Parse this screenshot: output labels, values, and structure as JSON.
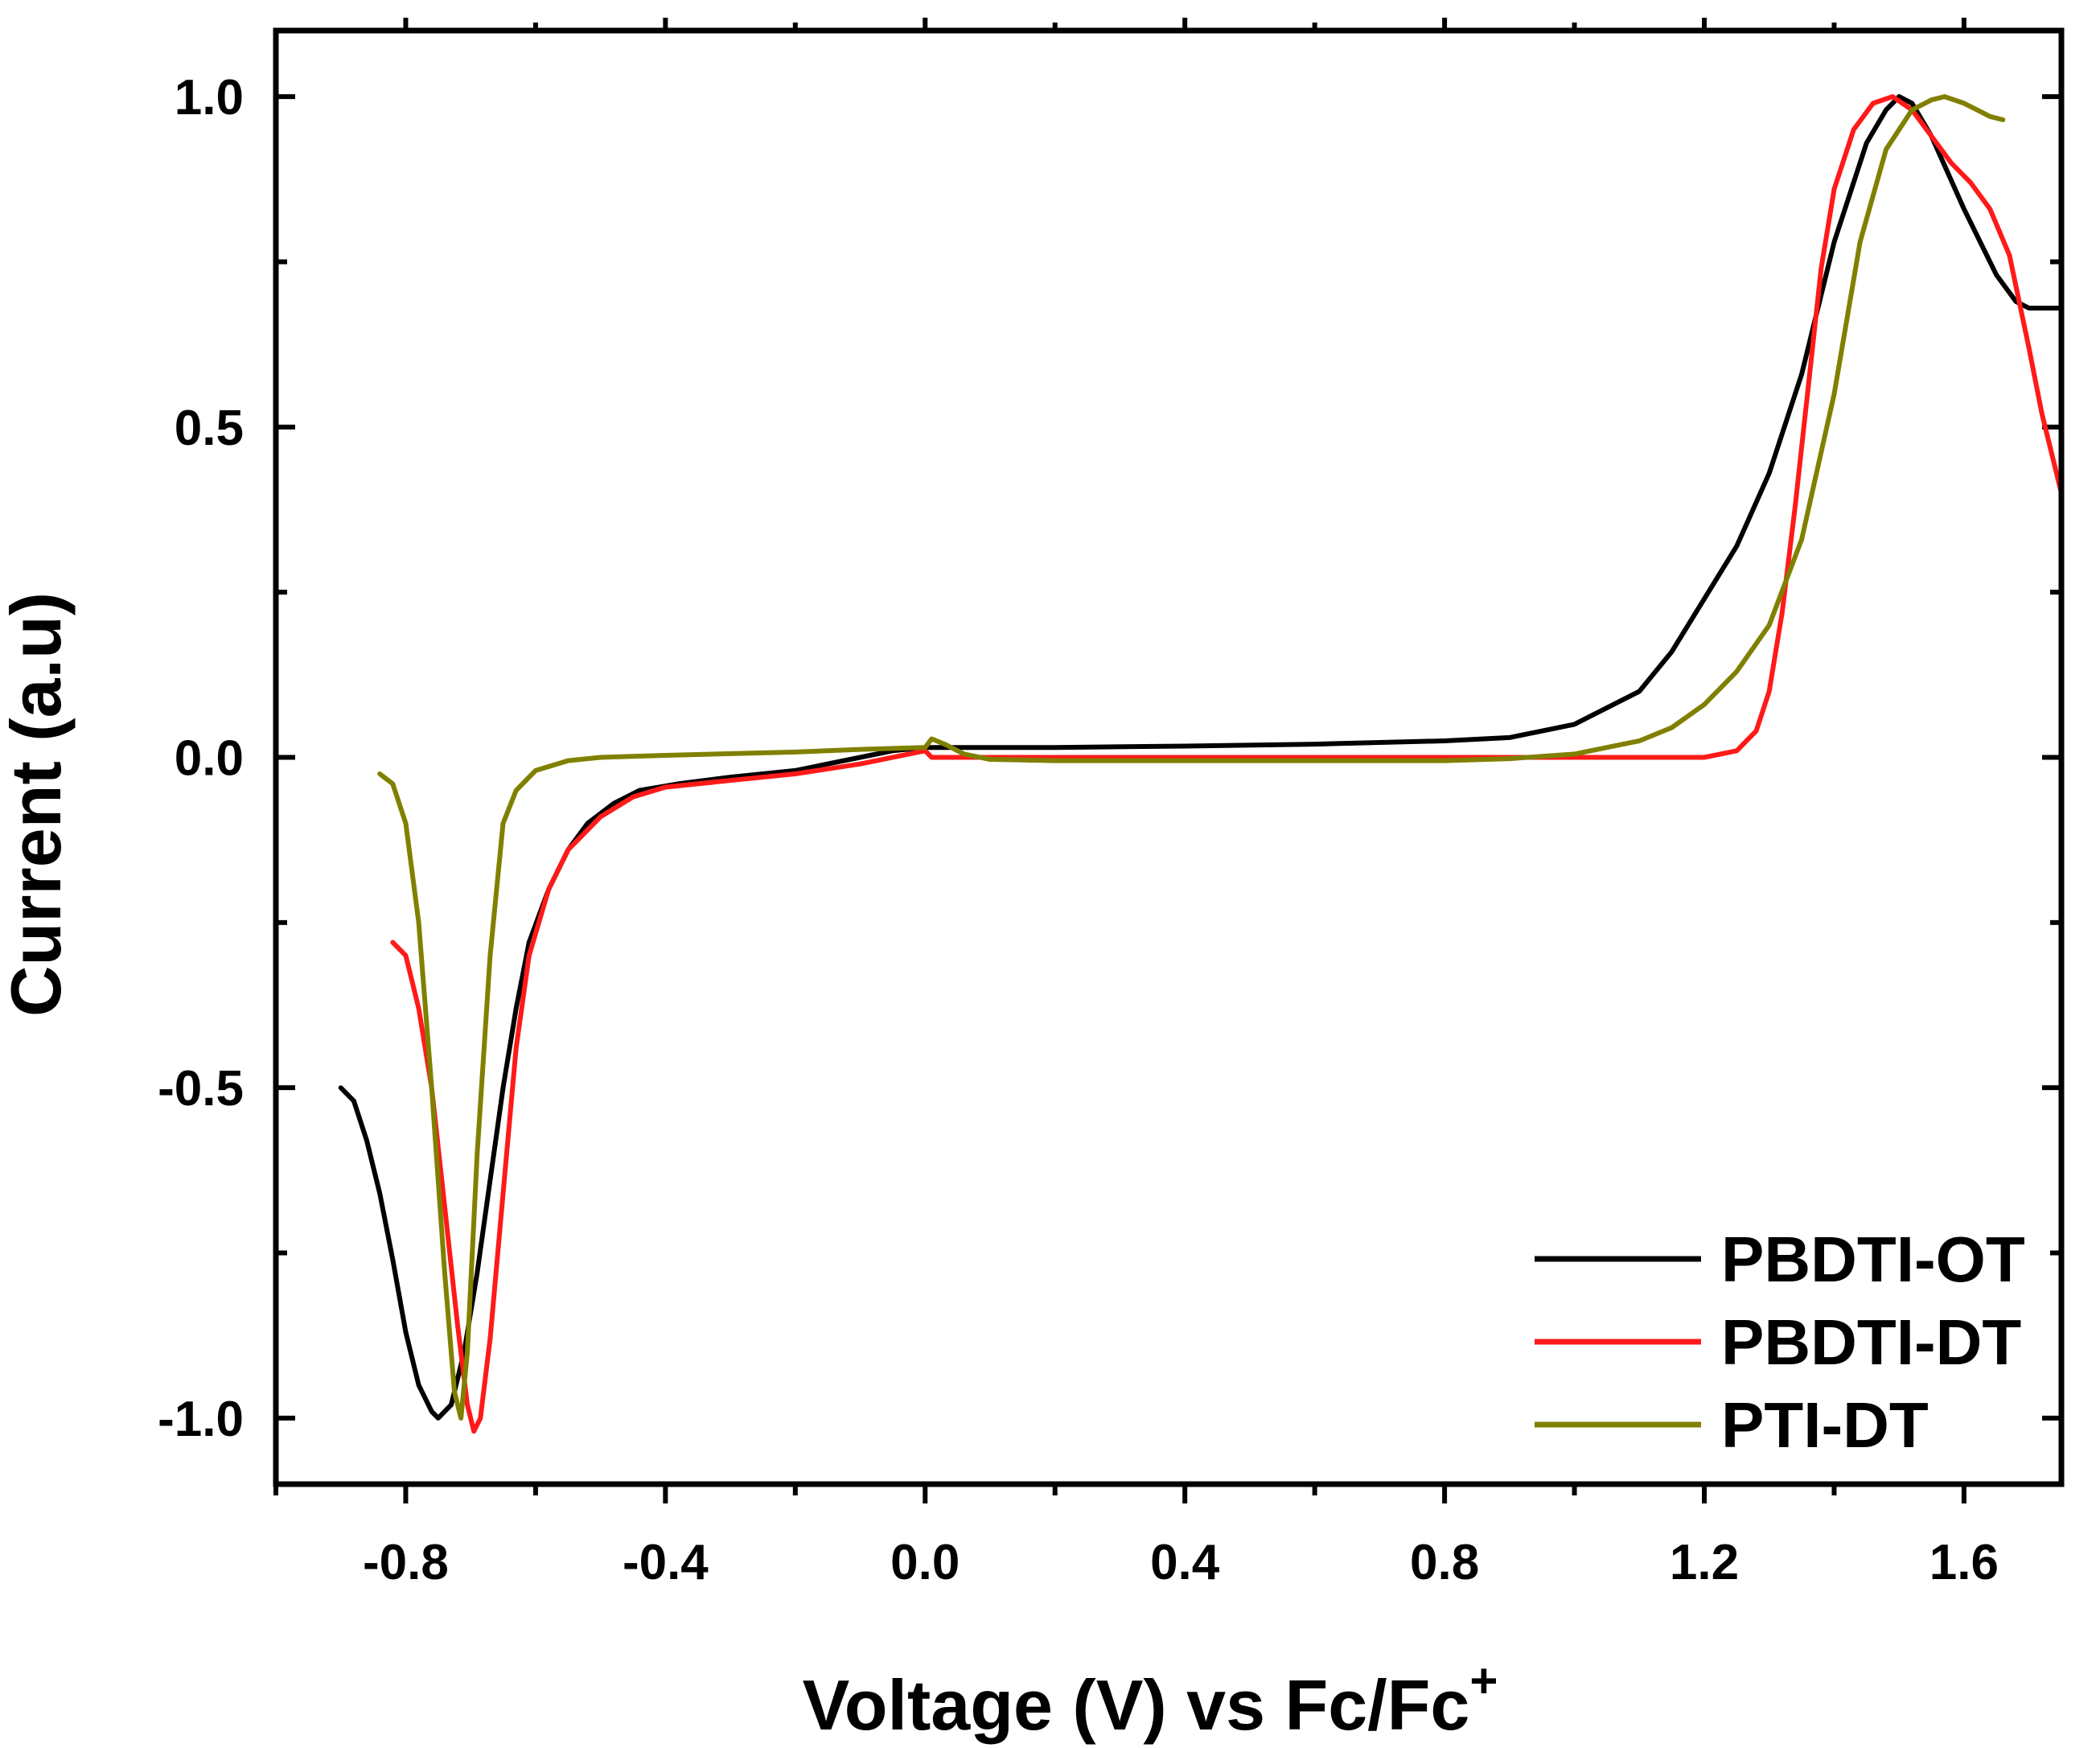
{
  "chart_data": {
    "type": "line",
    "title": "",
    "xlabel": "Voltage (V) vs Fc/Fc",
    "xlabel_superscript": "+",
    "ylabel": "Current (a.u)",
    "xlim": [
      -1.0,
      1.75
    ],
    "ylim": [
      -1.1,
      1.1
    ],
    "x_ticks": [
      -0.8,
      -0.4,
      0.0,
      0.4,
      0.8,
      1.2,
      1.6
    ],
    "x_tick_labels": [
      "-0.8",
      "-0.4",
      "0.0",
      "0.4",
      "0.8",
      "1.2",
      "1.6"
    ],
    "y_ticks": [
      -1.0,
      -0.5,
      0.0,
      0.5,
      1.0
    ],
    "y_tick_labels": [
      "-1.0",
      "-0.5",
      "0.0",
      "0.5",
      "1.0"
    ],
    "grid": false,
    "legend_position": "bottom-right",
    "series": [
      {
        "name": "PBDTI-OT",
        "color": "#000000",
        "points": [
          [
            -0.9,
            -0.5
          ],
          [
            -0.88,
            -0.52
          ],
          [
            -0.86,
            -0.58
          ],
          [
            -0.84,
            -0.66
          ],
          [
            -0.82,
            -0.76
          ],
          [
            -0.8,
            -0.87
          ],
          [
            -0.78,
            -0.95
          ],
          [
            -0.76,
            -0.99
          ],
          [
            -0.75,
            -1.0
          ],
          [
            -0.73,
            -0.98
          ],
          [
            -0.71,
            -0.9
          ],
          [
            -0.69,
            -0.78
          ],
          [
            -0.67,
            -0.64
          ],
          [
            -0.65,
            -0.5
          ],
          [
            -0.63,
            -0.38
          ],
          [
            -0.61,
            -0.28
          ],
          [
            -0.58,
            -0.2
          ],
          [
            -0.55,
            -0.14
          ],
          [
            -0.52,
            -0.1
          ],
          [
            -0.48,
            -0.07
          ],
          [
            -0.44,
            -0.05
          ],
          [
            -0.38,
            -0.04
          ],
          [
            -0.3,
            -0.03
          ],
          [
            -0.2,
            -0.02
          ],
          [
            -0.1,
            0.0
          ],
          [
            -0.05,
            0.01
          ],
          [
            0.0,
            0.015
          ],
          [
            0.2,
            0.015
          ],
          [
            0.4,
            0.017
          ],
          [
            0.6,
            0.02
          ],
          [
            0.8,
            0.025
          ],
          [
            0.9,
            0.03
          ],
          [
            1.0,
            0.05
          ],
          [
            1.1,
            0.1
          ],
          [
            1.15,
            0.16
          ],
          [
            1.2,
            0.24
          ],
          [
            1.25,
            0.32
          ],
          [
            1.3,
            0.43
          ],
          [
            1.35,
            0.58
          ],
          [
            1.4,
            0.78
          ],
          [
            1.45,
            0.93
          ],
          [
            1.48,
            0.98
          ],
          [
            1.5,
            1.0
          ],
          [
            1.52,
            0.99
          ],
          [
            1.55,
            0.94
          ],
          [
            1.6,
            0.83
          ],
          [
            1.65,
            0.73
          ],
          [
            1.68,
            0.69
          ],
          [
            1.7,
            0.68
          ],
          [
            1.75,
            0.68
          ]
        ]
      },
      {
        "name": "PBDTI-DT",
        "color": "#ff1a1a",
        "points": [
          [
            -0.82,
            -0.28
          ],
          [
            -0.8,
            -0.3
          ],
          [
            -0.78,
            -0.38
          ],
          [
            -0.76,
            -0.5
          ],
          [
            -0.74,
            -0.68
          ],
          [
            -0.72,
            -0.86
          ],
          [
            -0.705,
            -0.98
          ],
          [
            -0.695,
            -1.02
          ],
          [
            -0.685,
            -1.0
          ],
          [
            -0.67,
            -0.88
          ],
          [
            -0.65,
            -0.66
          ],
          [
            -0.63,
            -0.44
          ],
          [
            -0.61,
            -0.3
          ],
          [
            -0.58,
            -0.2
          ],
          [
            -0.55,
            -0.14
          ],
          [
            -0.5,
            -0.09
          ],
          [
            -0.45,
            -0.06
          ],
          [
            -0.4,
            -0.045
          ],
          [
            -0.3,
            -0.035
          ],
          [
            -0.2,
            -0.025
          ],
          [
            -0.1,
            -0.01
          ],
          [
            0.0,
            0.01
          ],
          [
            0.01,
            0.0
          ],
          [
            0.2,
            0.0
          ],
          [
            0.4,
            0.0
          ],
          [
            0.6,
            0.0
          ],
          [
            0.8,
            0.0
          ],
          [
            1.0,
            0.0
          ],
          [
            1.2,
            0.0
          ],
          [
            1.25,
            0.01
          ],
          [
            1.28,
            0.04
          ],
          [
            1.3,
            0.1
          ],
          [
            1.32,
            0.22
          ],
          [
            1.34,
            0.38
          ],
          [
            1.36,
            0.56
          ],
          [
            1.38,
            0.74
          ],
          [
            1.4,
            0.86
          ],
          [
            1.43,
            0.95
          ],
          [
            1.46,
            0.99
          ],
          [
            1.49,
            1.0
          ],
          [
            1.52,
            0.98
          ],
          [
            1.55,
            0.94
          ],
          [
            1.58,
            0.9
          ],
          [
            1.61,
            0.87
          ],
          [
            1.64,
            0.83
          ],
          [
            1.67,
            0.76
          ],
          [
            1.7,
            0.62
          ],
          [
            1.72,
            0.52
          ],
          [
            1.75,
            0.4
          ]
        ]
      },
      {
        "name": "PTI-DT",
        "color": "#808000",
        "points": [
          [
            -0.84,
            -0.025
          ],
          [
            -0.82,
            -0.04
          ],
          [
            -0.8,
            -0.1
          ],
          [
            -0.78,
            -0.25
          ],
          [
            -0.76,
            -0.5
          ],
          [
            -0.74,
            -0.78
          ],
          [
            -0.725,
            -0.96
          ],
          [
            -0.715,
            -1.0
          ],
          [
            -0.705,
            -0.9
          ],
          [
            -0.69,
            -0.6
          ],
          [
            -0.67,
            -0.3
          ],
          [
            -0.65,
            -0.1
          ],
          [
            -0.63,
            -0.05
          ],
          [
            -0.6,
            -0.02
          ],
          [
            -0.55,
            -0.005
          ],
          [
            -0.5,
            0.0
          ],
          [
            -0.4,
            0.003
          ],
          [
            -0.2,
            0.008
          ],
          [
            -0.1,
            0.012
          ],
          [
            0.0,
            0.015
          ],
          [
            0.01,
            0.028
          ],
          [
            0.03,
            0.02
          ],
          [
            0.06,
            0.005
          ],
          [
            0.1,
            -0.003
          ],
          [
            0.2,
            -0.005
          ],
          [
            0.4,
            -0.005
          ],
          [
            0.6,
            -0.005
          ],
          [
            0.8,
            -0.005
          ],
          [
            0.9,
            -0.002
          ],
          [
            1.0,
            0.005
          ],
          [
            1.05,
            0.015
          ],
          [
            1.1,
            0.025
          ],
          [
            1.15,
            0.045
          ],
          [
            1.2,
            0.08
          ],
          [
            1.25,
            0.13
          ],
          [
            1.3,
            0.2
          ],
          [
            1.35,
            0.33
          ],
          [
            1.4,
            0.55
          ],
          [
            1.44,
            0.78
          ],
          [
            1.48,
            0.92
          ],
          [
            1.52,
            0.98
          ],
          [
            1.55,
            0.995
          ],
          [
            1.57,
            1.0
          ],
          [
            1.6,
            0.99
          ],
          [
            1.62,
            0.98
          ],
          [
            1.64,
            0.97
          ],
          [
            1.66,
            0.965
          ]
        ]
      }
    ]
  }
}
